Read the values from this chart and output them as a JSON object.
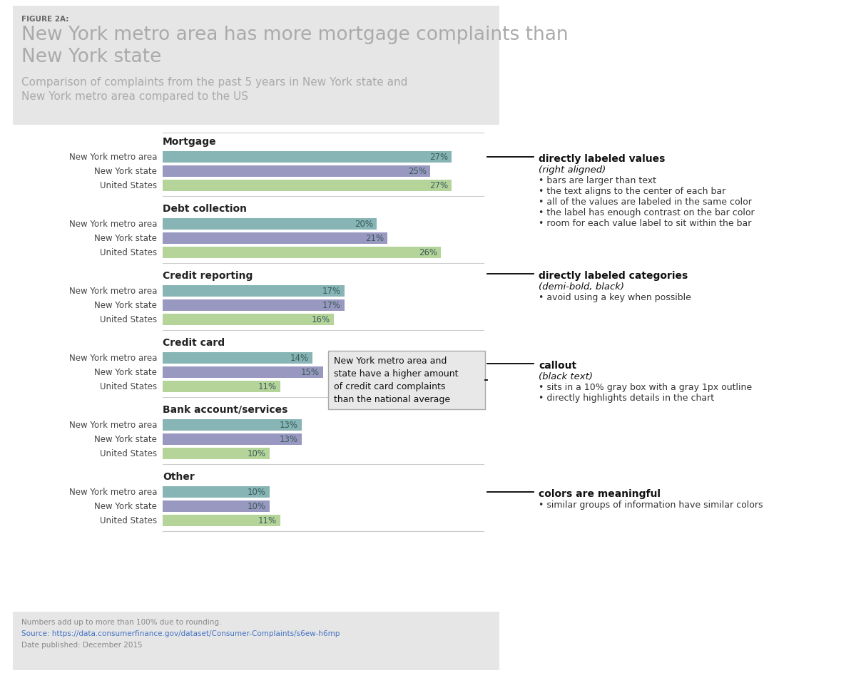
{
  "figure_label": "FIGURE 2A:",
  "title": "New York metro area has more mortgage complaints than\nNew York state",
  "subtitle": "Comparison of complaints from the past 5 years in New York state and\nNew York metro area compared to the US",
  "categories": [
    "Mortgage",
    "Debt collection",
    "Credit reporting",
    "Credit card",
    "Bank account/services",
    "Other"
  ],
  "row_labels": [
    "New York metro area",
    "New York state",
    "United States"
  ],
  "data": {
    "Mortgage": [
      27,
      25,
      27
    ],
    "Debt collection": [
      20,
      21,
      26
    ],
    "Credit reporting": [
      17,
      17,
      16
    ],
    "Credit card": [
      14,
      15,
      11
    ],
    "Bank account/services": [
      13,
      13,
      10
    ],
    "Other": [
      10,
      10,
      11
    ]
  },
  "bar_colors": [
    "#87b5b5",
    "#9898c0",
    "#b5d49a"
  ],
  "footer_text_1": "Numbers add up to more than 100% due to rounding.",
  "footer_text_2": "Source: https://data.consumerfinance.gov/dataset/Consumer-Complaints/s6ew-h6mp",
  "footer_text_3": "Date published: December 2015",
  "callout_text": "New York metro area and\nstate have a higher amount\nof credit card complaints\nthan the national average",
  "ann_directly_labeled_values_title": "directly labeled values",
  "ann_directly_labeled_values_sub": "(right aligned)",
  "ann_directly_labeled_values_bullets": [
    "bars are larger than text",
    "the text aligns to the center of each bar",
    "all of the values are labeled in the same color",
    "the label has enough contrast on the bar color",
    "room for each value label to sit within the bar"
  ],
  "ann_directly_labeled_categories_title": "directly labeled categories",
  "ann_directly_labeled_categories_sub": "(demi-bold, black)",
  "ann_directly_labeled_categories_bullets": [
    "avoid using a key when possible"
  ],
  "ann_callout_title": "callout",
  "ann_callout_sub": "(black text)",
  "ann_callout_bullets": [
    "sits in a 10% gray box with a gray 1px outline",
    "directly highlights details in the chart"
  ],
  "ann_colors_title": "colors are meaningful",
  "ann_colors_bullets": [
    "similar groups of information have similar colors"
  ]
}
